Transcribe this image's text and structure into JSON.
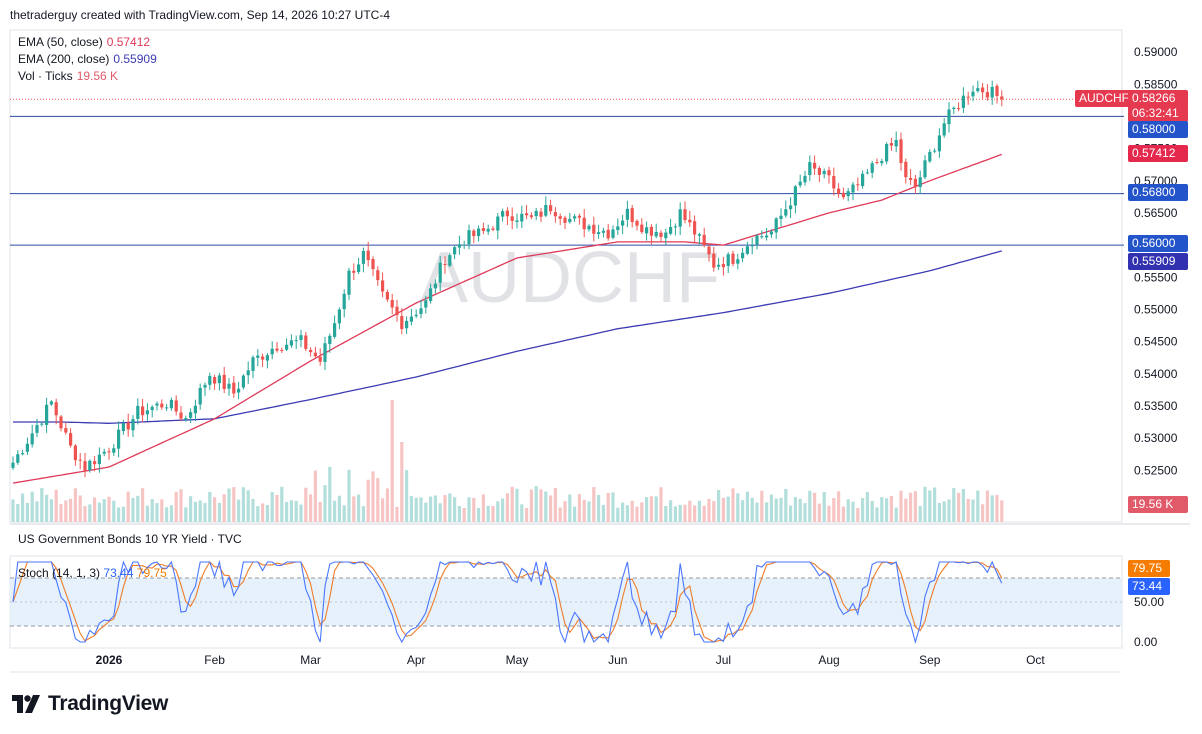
{
  "header": {
    "credit": "thetraderguy created with TradingView.com, Sep 14, 2026 10:27 UTC-4"
  },
  "legend": [
    {
      "label": "EMA (50, close)",
      "value": "0.57412",
      "color": "#e03a5a"
    },
    {
      "label": "EMA (200, close)",
      "value": "0.55909",
      "color": "#3b3bb3"
    },
    {
      "label": "Vol · Ticks",
      "value": "19.56 K",
      "color": "#e05a6a"
    }
  ],
  "watermark": "AUDCHF",
  "subpane_title": "US Government Bonds 10 YR Yield · TVC",
  "stoch_legend": {
    "label": "Stoch (14, 1, 3)",
    "k": "73.44",
    "d": "79.75",
    "k_color": "#2962ff",
    "d_color": "#f57c00"
  },
  "brand": "TradingView",
  "colors": {
    "up": "#26a69a",
    "down": "#ef5350",
    "ema50": "#e03a5a",
    "ema200": "#3b3bb3",
    "hline": "#2a4ca3",
    "stoch_k": "#4a76ff",
    "stoch_d": "#ef7d2a"
  },
  "tags": {
    "symbol": "AUDCHF",
    "price": "0.58266",
    "countdown": "06:32:41",
    "level_58000": "0.58000",
    "ema50": "0.57412",
    "level_56800": "0.56800",
    "level_56000": "0.56000",
    "ema200": "0.55909",
    "volume": "19.56 K",
    "stoch_d": "79.75",
    "stoch_k": "73.44"
  },
  "chart_data": {
    "type": "candlestick",
    "symbol": "AUDCHF",
    "y_ticks": [
      "0.59000",
      "0.58500",
      "0.57500",
      "0.57000",
      "0.56500",
      "0.55500",
      "0.55000",
      "0.54500",
      "0.54000",
      "0.53500",
      "0.53000",
      "0.52500"
    ],
    "ylim": [
      0.521,
      0.5925
    ],
    "x_ticks": [
      {
        "label": "2026",
        "bold": true
      },
      {
        "label": "Feb"
      },
      {
        "label": "Mar"
      },
      {
        "label": "Apr"
      },
      {
        "label": "May"
      },
      {
        "label": "Jun"
      },
      {
        "label": "Jul"
      },
      {
        "label": "Aug"
      },
      {
        "label": "Sep"
      },
      {
        "label": "Oct"
      }
    ],
    "x_tick_day_index": [
      20,
      42,
      62,
      84,
      105,
      126,
      148,
      170,
      191,
      213
    ],
    "horizontal_levels": [
      0.58,
      0.568,
      0.56
    ],
    "last_price": 0.58266,
    "close_anchors": [
      [
        0,
        0.5262
      ],
      [
        8,
        0.5355
      ],
      [
        12,
        0.5285
      ],
      [
        15,
        0.5255
      ],
      [
        20,
        0.5285
      ],
      [
        26,
        0.534
      ],
      [
        32,
        0.5355
      ],
      [
        36,
        0.533
      ],
      [
        41,
        0.54
      ],
      [
        46,
        0.537
      ],
      [
        50,
        0.542
      ],
      [
        55,
        0.5445
      ],
      [
        60,
        0.545
      ],
      [
        64,
        0.542
      ],
      [
        67,
        0.548
      ],
      [
        70,
        0.5555
      ],
      [
        73,
        0.5585
      ],
      [
        77,
        0.552
      ],
      [
        81,
        0.548
      ],
      [
        86,
        0.551
      ],
      [
        90,
        0.558
      ],
      [
        94,
        0.561
      ],
      [
        98,
        0.562
      ],
      [
        103,
        0.565
      ],
      [
        108,
        0.564
      ],
      [
        112,
        0.566
      ],
      [
        116,
        0.564
      ],
      [
        120,
        0.563
      ],
      [
        124,
        0.562
      ],
      [
        128,
        0.565
      ],
      [
        132,
        0.5625
      ],
      [
        136,
        0.562
      ],
      [
        139,
        0.565
      ],
      [
        142,
        0.562
      ],
      [
        146,
        0.557
      ],
      [
        150,
        0.558
      ],
      [
        154,
        0.561
      ],
      [
        158,
        0.562
      ],
      [
        162,
        0.567
      ],
      [
        166,
        0.572
      ],
      [
        170,
        0.57
      ],
      [
        173,
        0.567
      ],
      [
        177,
        0.57
      ],
      [
        181,
        0.574
      ],
      [
        184,
        0.576
      ],
      [
        186,
        0.57
      ],
      [
        188,
        0.569
      ],
      [
        191,
        0.574
      ],
      [
        194,
        0.579
      ],
      [
        197,
        0.582
      ],
      [
        200,
        0.5845
      ],
      [
        203,
        0.584
      ],
      [
        206,
        0.5827
      ]
    ],
    "ema50_anchors": [
      [
        0,
        0.523
      ],
      [
        20,
        0.5255
      ],
      [
        42,
        0.533
      ],
      [
        62,
        0.542
      ],
      [
        84,
        0.551
      ],
      [
        105,
        0.558
      ],
      [
        126,
        0.5605
      ],
      [
        140,
        0.5605
      ],
      [
        148,
        0.56
      ],
      [
        170,
        0.565
      ],
      [
        181,
        0.567
      ],
      [
        191,
        0.57
      ],
      [
        206,
        0.5741
      ]
    ],
    "ema200_anchors": [
      [
        0,
        0.5325
      ],
      [
        10,
        0.5325
      ],
      [
        20,
        0.5323
      ],
      [
        42,
        0.533
      ],
      [
        62,
        0.536
      ],
      [
        84,
        0.5395
      ],
      [
        105,
        0.5435
      ],
      [
        126,
        0.547
      ],
      [
        148,
        0.5495
      ],
      [
        170,
        0.5525
      ],
      [
        191,
        0.556
      ],
      [
        206,
        0.5591
      ]
    ],
    "volume_axis_label": "19.56 K",
    "stoch_ticks": [
      "50.00",
      "0.00"
    ],
    "stoch_bands": [
      20,
      80
    ],
    "stoch_last": {
      "k": 73.44,
      "d": 79.75
    }
  }
}
